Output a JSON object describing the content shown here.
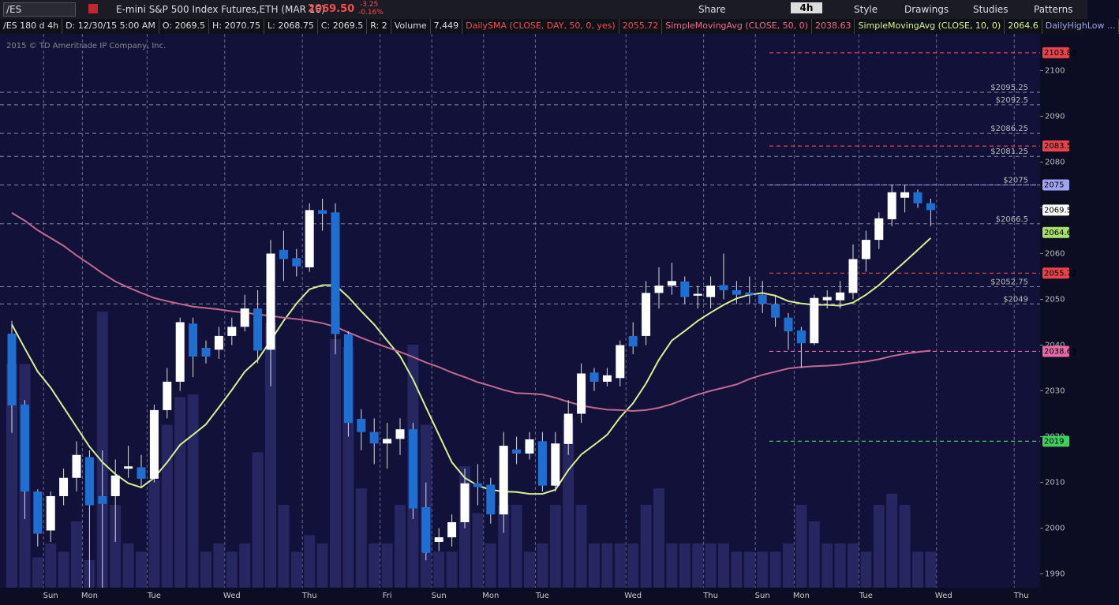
{
  "toolbar": {
    "symbol": "/ES",
    "description": "E-mini S&P 500 Index Futures,ETH (MAR 16)",
    "last": "2069.50",
    "change": "-3.25",
    "change_pct": "-0.16%",
    "share": "Share",
    "interval": "4h",
    "style": "Style",
    "drawings": "Drawings",
    "studies": "Studies",
    "patterns": "Patterns"
  },
  "info_bar": {
    "symbol": "/ES 180 d 4h",
    "date": "D: 12/30/15 5:00 AM",
    "open": "O: 2069.5",
    "high": "H: 2070.75",
    "low": "L: 2068.75",
    "close": "C: 2069.5",
    "range": "R: 2",
    "volume_label": "Volume",
    "volume": "7,449",
    "daily_sma": "DailySMA (CLOSE, DAY, 50, 0, yes)",
    "daily_high_low": "DailyHighLow ..."
  },
  "watermark": "2015 © TD Ameritrade IP Company, Inc.",
  "chart_data": {
    "type": "candlestick",
    "categories": [
      null,
      null,
      null,
      "Sun",
      null,
      null,
      "Mon",
      null,
      null,
      null,
      null,
      "Tue",
      null,
      null,
      null,
      null,
      null,
      "Wed",
      null,
      null,
      null,
      null,
      null,
      "Thu",
      null,
      null,
      null,
      null,
      null,
      "Fri",
      null,
      null,
      null,
      "Sun",
      null,
      null,
      null,
      "Mon",
      null,
      null,
      null,
      "Tue",
      null,
      null,
      null,
      null,
      null,
      null,
      "Wed",
      null,
      null,
      null,
      null,
      null,
      "Thu",
      null,
      null,
      null,
      "Sun",
      null,
      null,
      "Mon",
      null,
      null,
      null,
      null,
      "Tue",
      null,
      null,
      null,
      null,
      null,
      "Wed",
      null,
      null,
      null,
      null,
      null,
      "Thu"
    ],
    "candles": {
      "up_color": "#ffffff",
      "down_color": "#1f6fd1",
      "open": [
        2042.5,
        2027,
        2008,
        1999.5,
        2007,
        2011,
        2015.5,
        2007,
        2007,
        2013,
        2013.3,
        2010.8,
        2025.8,
        2032,
        2044.7,
        2039.4,
        2039,
        2042,
        2044,
        2048,
        2039,
        2060.8,
        2059,
        2057,
        2069.5,
        2069,
        2042.4,
        2023.9,
        2021,
        2018.5,
        2019.5,
        2021.6,
        2004.6,
        1997,
        1998,
        2001.3,
        2009.8,
        2009.5,
        2003,
        2017.2,
        2016.3,
        2019,
        2009.3,
        2018.4,
        2025,
        2034,
        2032,
        2032.8,
        2042,
        2042,
        2051.4,
        2053,
        2053.9,
        2050.8,
        2050.5,
        2053.1,
        2052,
        2051.5,
        2051,
        2049,
        2046,
        2043.2,
        2040.4,
        2049.8,
        2049.8,
        2051.4,
        2058.8,
        2063,
        2067.5,
        2072.2,
        2073.4,
        2071,
        null,
        null,
        null,
        null,
        null,
        null,
        null
      ],
      "high": [
        2045.3,
        2028,
        2008.5,
        2008,
        2013,
        2019,
        2017,
        2017,
        2015,
        2018,
        2016,
        2027,
        2035,
        2046,
        2046,
        2041,
        2044,
        2046,
        2051,
        2052,
        2063,
        2065,
        2061,
        2071,
        2072,
        2071,
        2043,
        2026,
        2024,
        2023,
        2024,
        2023,
        2010,
        2000,
        2003,
        2013,
        2014,
        2011,
        2021,
        2020,
        2021,
        2021,
        2021,
        2028,
        2036,
        2035,
        2035,
        2041,
        2045,
        2054,
        2057,
        2058,
        2055,
        2053,
        2055,
        2060,
        2054,
        2055,
        2054,
        2051,
        2047,
        2044,
        2051,
        2052,
        2054,
        2062,
        2065,
        2069,
        2075,
        2075,
        2074,
        2072,
        null,
        null,
        null,
        null,
        null,
        null,
        null
      ],
      "low": [
        2020.8,
        2002,
        1996,
        1997,
        2005,
        2008,
        1987,
        1987,
        1997,
        2011,
        2009,
        2010,
        2024,
        2030,
        2033,
        2036,
        2037,
        2040,
        2043,
        2036,
        2031,
        2054,
        2055,
        2056,
        2065,
        2038,
        2020,
        2017,
        2014,
        2013,
        2016,
        2002,
        1993,
        1995,
        1996,
        2000,
        2005,
        2001,
        1999,
        2014,
        2015,
        2008,
        2008,
        2016,
        2023,
        2030,
        2031,
        2031,
        2038,
        2040,
        2048,
        2051,
        2049,
        2048,
        2048,
        2050,
        2049,
        2049,
        2047,
        2044,
        2039,
        2035,
        2040,
        2048,
        2048,
        2050,
        2056,
        2061,
        2066,
        2069,
        2070,
        2066,
        null,
        null,
        null,
        null,
        null,
        null,
        null
      ],
      "close": [
        2026.8,
        2008,
        1998.8,
        2007,
        2011,
        2016,
        2005,
        2005.3,
        2011.5,
        2013.5,
        2010.8,
        2025.8,
        2032,
        2045,
        2037.5,
        2037.5,
        2042,
        2044,
        2048,
        2038.8,
        2060,
        2058.8,
        2057.2,
        2069.5,
        2068.7,
        2042.4,
        2023,
        2021,
        2018.5,
        2019.5,
        2021.6,
        2004.3,
        1994.6,
        1998,
        2001.3,
        2009.8,
        2009,
        2003,
        2018,
        2016.3,
        2019.4,
        2009.3,
        2018.5,
        2025,
        2033.8,
        2032,
        2033.4,
        2040,
        2039.7,
        2051.4,
        2053,
        2054,
        2050.5,
        2051.2,
        2053,
        2052,
        2051,
        2051,
        2049,
        2046,
        2043,
        2040.4,
        2050.3,
        2050.5,
        2051.5,
        2058.8,
        2063,
        2067.7,
        2073.4,
        2073.4,
        2071,
        2069.5,
        null,
        null,
        null,
        null,
        null,
        null,
        null
      ]
    },
    "volume": {
      "color": "#262660",
      "vlim": [
        0,
        100
      ],
      "values": [
        81,
        81,
        11,
        16,
        13,
        24,
        10,
        100,
        30,
        16,
        13,
        39,
        59,
        69,
        70,
        13,
        16,
        13,
        16,
        49,
        96,
        30,
        13,
        19,
        16,
        90,
        87,
        36,
        16,
        16,
        30,
        88,
        59,
        13,
        13,
        44,
        27,
        16,
        30,
        30,
        13,
        16,
        30,
        61,
        30,
        16,
        16,
        16,
        16,
        30,
        36,
        16,
        16,
        16,
        16,
        16,
        13,
        13,
        13,
        13,
        16,
        30,
        24,
        16,
        16,
        16,
        13,
        30,
        34,
        30,
        13,
        13,
        null,
        null,
        null,
        null,
        null,
        null,
        null
      ]
    },
    "series": [
      {
        "name": "SimpleMovingAvg (CLOSE, 10, 0)",
        "color": "#d6f28e",
        "values": [
          2044.5,
          2039.3,
          2034.2,
          2030.7,
          2026.4,
          2022.1,
          2017.8,
          2014.4,
          2011.8,
          2009.8,
          2008.9,
          2011,
          2014.4,
          2018.2,
          2020.4,
          2022.7,
          2026.4,
          2030.2,
          2034.2,
          2036.8,
          2041,
          2045.3,
          2049.1,
          2052.2,
          2053.1,
          2053.1,
          2050.5,
          2047.4,
          2044.5,
          2041,
          2037.6,
          2032.5,
          2026.4,
          2020.4,
          2014.4,
          2011,
          2009.3,
          2008.4,
          2008,
          2007.9,
          2007.5,
          2007.5,
          2008.4,
          2012.7,
          2016.1,
          2018.2,
          2020.4,
          2024.2,
          2027.3,
          2031.6,
          2036.8,
          2041,
          2043.1,
          2045.3,
          2047.1,
          2048.8,
          2050.2,
          2051,
          2051.4,
          2050.8,
          2049.6,
          2049.1,
          2048.8,
          2048.8,
          2048.6,
          2049.3,
          2051,
          2053.1,
          2055.7,
          2058.2,
          2060.8,
          2063.4,
          null,
          null,
          null,
          null,
          null,
          null,
          null
        ]
      },
      {
        "name": "SimpleMovingAvg (CLOSE, 50, 0)",
        "color": "#c06a8c",
        "values": [
          2068.9,
          2067.2,
          2065.1,
          2063.4,
          2061.7,
          2059.6,
          2057.7,
          2055.7,
          2053.9,
          2052.6,
          2051.4,
          2050.3,
          2049.6,
          2049,
          2048.4,
          2048.1,
          2047.8,
          2047.4,
          2047.1,
          2046.7,
          2046.4,
          2046,
          2045.7,
          2045.3,
          2044.8,
          2044,
          2042.8,
          2041.6,
          2040.5,
          2039.5,
          2038.5,
          2037.4,
          2036.2,
          2035.2,
          2034,
          2033,
          2031.9,
          2031.1,
          2030.2,
          2029.5,
          2029.4,
          2029.2,
          2028.5,
          2027.6,
          2026.8,
          2026.3,
          2025.9,
          2025.8,
          2025.6,
          2025.8,
          2026.3,
          2027.1,
          2028.2,
          2029.2,
          2030,
          2030.7,
          2031.4,
          2032.6,
          2033.5,
          2034.2,
          2034.9,
          2035.2,
          2035.4,
          2035.5,
          2035.7,
          2036.1,
          2036.4,
          2036.9,
          2037.6,
          2038.1,
          2038.5,
          2038.8,
          null,
          null,
          null,
          null,
          null,
          null,
          null
        ]
      }
    ],
    "ylim": [
      1987,
      2108
    ],
    "yticks": [
      1990,
      2000,
      2010,
      2020,
      2030,
      2040,
      2050,
      2060,
      2070,
      2080,
      2090,
      2100
    ],
    "price_notes": [
      {
        "value": 2095.25,
        "label": "$2095.25"
      },
      {
        "value": 2092.5,
        "label": "$2092.5"
      },
      {
        "value": 2086.25,
        "label": "$2086.25"
      },
      {
        "value": 2081.25,
        "label": "$2081.25"
      },
      {
        "value": 2075,
        "label": "$2075"
      },
      {
        "value": 2066.5,
        "label": "$2066.5"
      },
      {
        "value": 2052.75,
        "label": "$2052.75"
      },
      {
        "value": 2049,
        "label": "$2049"
      }
    ],
    "levels": [
      {
        "value": 2103.88,
        "color": "#e8434a",
        "line": true
      },
      {
        "value": 2083.5,
        "color": "#e8434a",
        "line": true
      },
      {
        "value": 2075,
        "color": "#9fa4f0",
        "line": true
      },
      {
        "value": 2069.5,
        "color": "#ffffff",
        "line": false
      },
      {
        "value": 2064.6,
        "color": "#a8e06a",
        "line": false
      },
      {
        "value": 2055.72,
        "color": "#e8434a",
        "line": true
      },
      {
        "value": 2038.63,
        "color": "#e86aa8",
        "line": true
      },
      {
        "value": 2019,
        "color": "#3fcf5a",
        "line": true
      }
    ]
  }
}
